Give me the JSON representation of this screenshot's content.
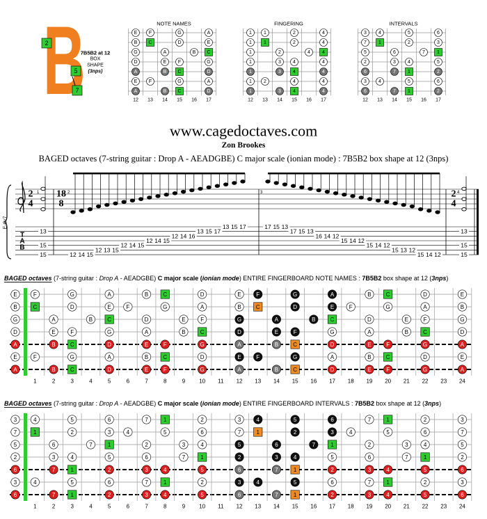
{
  "logo": {
    "letter": "B",
    "squares": [
      2,
      5,
      7
    ],
    "lines": [
      "7B5B2 at 12",
      "BOX",
      "SHAPE",
      "(3nps)"
    ]
  },
  "mini_boards": [
    {
      "title": "NOTE NAMES",
      "root": "C",
      "frets": [
        12,
        13,
        14,
        15,
        16,
        17
      ],
      "rows": [
        [
          "E",
          "F",
          null,
          "G",
          null,
          "A"
        ],
        [
          "B",
          "C",
          null,
          "D",
          null,
          "E"
        ],
        [
          "G",
          null,
          "A",
          null,
          "B",
          "C"
        ],
        [
          "D",
          null,
          "E",
          "F",
          null,
          "G"
        ],
        [
          "A",
          null,
          "B",
          "C",
          null,
          "D"
        ],
        [
          "E",
          "F",
          null,
          "G",
          null,
          "A"
        ],
        [
          "A",
          null,
          "B",
          "C",
          null,
          "D"
        ]
      ]
    },
    {
      "title": "FINGERING",
      "frets": [
        12,
        13,
        14,
        15,
        16,
        17
      ],
      "rows": [
        [
          1,
          1,
          null,
          2,
          null,
          4
        ],
        [
          1,
          1,
          null,
          2,
          null,
          4
        ],
        [
          1,
          null,
          2,
          null,
          4,
          4
        ],
        [
          1,
          null,
          3,
          4,
          null,
          4
        ],
        [
          1,
          null,
          3,
          4,
          null,
          4
        ],
        [
          1,
          2,
          null,
          4,
          null,
          4
        ],
        [
          1,
          null,
          3,
          4,
          null,
          4
        ]
      ]
    },
    {
      "title": "INTERVALS",
      "frets": [
        12,
        13,
        14,
        15,
        16,
        17
      ],
      "rows": [
        [
          3,
          4,
          null,
          5,
          null,
          6
        ],
        [
          7,
          1,
          null,
          2,
          null,
          3
        ],
        [
          5,
          null,
          6,
          null,
          7,
          1
        ],
        [
          2,
          null,
          3,
          4,
          null,
          5
        ],
        [
          6,
          null,
          7,
          1,
          null,
          2
        ],
        [
          3,
          4,
          null,
          5,
          null,
          6
        ],
        [
          6,
          null,
          7,
          1,
          null,
          2
        ]
      ]
    }
  ],
  "site": "www.cagedoctaves.com",
  "author": "Zon Brookes",
  "subtitle": "BAGED octaves (7-string guitar : Drop A - AEADGBE) C major scale (ionian mode) : 7B5B2 box shape at 12 (3nps)",
  "score": {
    "instrument": "E-Gr7",
    "time": [
      {
        "top": 2,
        "bottom": 4
      },
      {
        "top": 18,
        "bottom": 8
      },
      {
        "top": 2,
        "bottom": 4
      }
    ],
    "measure_numbers": [
      1,
      2,
      3,
      4
    ],
    "tab_clef": [
      "T",
      "A",
      "B"
    ],
    "measures": [
      [
        [
          [
            2,
            13
          ],
          [
            5,
            15
          ],
          [
            7,
            15
          ]
        ]
      ],
      [
        [
          [
            7,
            12
          ]
        ],
        [
          [
            7,
            14
          ]
        ],
        [
          [
            7,
            15
          ]
        ],
        [
          [
            6,
            12
          ]
        ],
        [
          [
            6,
            13
          ]
        ],
        [
          [
            6,
            15
          ]
        ],
        [
          [
            5,
            12
          ]
        ],
        [
          [
            5,
            14
          ]
        ],
        [
          [
            5,
            15
          ]
        ],
        [
          [
            4,
            12
          ]
        ],
        [
          [
            4,
            14
          ]
        ],
        [
          [
            4,
            15
          ]
        ],
        [
          [
            3,
            12
          ]
        ],
        [
          [
            3,
            14
          ]
        ],
        [
          [
            3,
            16
          ]
        ],
        [
          [
            2,
            13
          ]
        ],
        [
          [
            2,
            15
          ]
        ],
        [
          [
            2,
            17
          ]
        ],
        [
          [
            1,
            13
          ]
        ],
        [
          [
            1,
            15
          ]
        ],
        [
          [
            1,
            17
          ]
        ]
      ],
      [
        [
          [
            1,
            17
          ]
        ],
        [
          [
            1,
            15
          ]
        ],
        [
          [
            1,
            13
          ]
        ],
        [
          [
            2,
            17
          ]
        ],
        [
          [
            2,
            15
          ]
        ],
        [
          [
            2,
            13
          ]
        ],
        [
          [
            3,
            16
          ]
        ],
        [
          [
            3,
            14
          ]
        ],
        [
          [
            3,
            12
          ]
        ],
        [
          [
            4,
            15
          ]
        ],
        [
          [
            4,
            14
          ]
        ],
        [
          [
            4,
            12
          ]
        ],
        [
          [
            5,
            15
          ]
        ],
        [
          [
            5,
            14
          ]
        ],
        [
          [
            5,
            12
          ]
        ],
        [
          [
            6,
            15
          ]
        ],
        [
          [
            6,
            13
          ]
        ],
        [
          [
            6,
            12
          ]
        ],
        [
          [
            7,
            15
          ]
        ],
        [
          [
            7,
            14
          ]
        ],
        [
          [
            7,
            12
          ]
        ]
      ],
      [
        [
          [
            2,
            13
          ],
          [
            5,
            15
          ],
          [
            7,
            15
          ]
        ]
      ]
    ]
  },
  "boards": [
    {
      "header": [
        "BAGED octaves",
        " (7-string guitar : ",
        "Drop A",
        " - AEADGBE) ",
        "C major scale (",
        "ionian mode",
        ") ENTIRE FINGERBOARD NOTE NAMES : ",
        "7B5B2",
        " box shape at 12 (",
        "3nps",
        ")"
      ],
      "root": "C",
      "dot_color": "#ffffff",
      "colors": {
        "root": "#2ecc2e",
        "root_box": "#f28a1e",
        "box": "#111111",
        "box_accent": "#777777"
      },
      "frets": [
        1,
        2,
        3,
        4,
        5,
        6,
        7,
        8,
        9,
        10,
        11,
        12,
        13,
        14,
        15,
        16,
        17,
        18,
        19,
        20,
        21,
        22,
        23,
        24
      ],
      "rows": [
        {
          "color": "#ffffff",
          "box": [
            13,
            15,
            17
          ],
          "notes": [
            "E",
            "F",
            null,
            "G",
            null,
            "A",
            null,
            "B",
            "C",
            null,
            "D",
            null,
            "E",
            "F",
            null,
            "G",
            null,
            "A",
            null,
            "B",
            "C",
            null,
            "D",
            null,
            "E"
          ]
        },
        {
          "color": "#ffffff",
          "box": [
            13,
            15,
            17
          ],
          "notes": [
            "B",
            "C",
            null,
            "D",
            null,
            "E",
            "F",
            null,
            "G",
            null,
            "A",
            null,
            "B",
            "C",
            null,
            "D",
            null,
            "E",
            "F",
            null,
            "G",
            null,
            "A",
            null,
            "B"
          ]
        },
        {
          "color": "#ffffff",
          "box": [
            12,
            14,
            16
          ],
          "notes": [
            "G",
            null,
            "A",
            null,
            "B",
            "C",
            null,
            "D",
            null,
            "E",
            "F",
            null,
            "G",
            null,
            "A",
            null,
            "B",
            "C",
            null,
            "D",
            null,
            "E",
            "F",
            null,
            "G"
          ]
        },
        {
          "color": "#ffffff",
          "box": [
            12,
            14,
            15
          ],
          "notes": [
            "D",
            null,
            "E",
            "F",
            null,
            "G",
            null,
            "A",
            null,
            "B",
            "C",
            null,
            "D",
            null,
            "E",
            "F",
            null,
            "G",
            null,
            "A",
            null,
            "B",
            "C",
            null,
            "D"
          ]
        },
        {
          "color": "#e02020",
          "box": [
            12,
            14,
            15
          ],
          "notes": [
            "A",
            null,
            "B",
            "C",
            null,
            "D",
            null,
            "E",
            "F",
            null,
            "G",
            null,
            "A",
            null,
            "B",
            "C",
            null,
            "D",
            null,
            "E",
            "F",
            null,
            "G",
            null,
            "A"
          ]
        },
        {
          "color": "#ffffff",
          "box": [
            12,
            13,
            15
          ],
          "notes": [
            "E",
            "F",
            null,
            "G",
            null,
            "A",
            null,
            "B",
            "C",
            null,
            "D",
            null,
            "E",
            "F",
            null,
            "G",
            null,
            "A",
            null,
            "B",
            "C",
            null,
            "D",
            null,
            "E"
          ]
        },
        {
          "color": "#e02020",
          "box": [
            12,
            14,
            15
          ],
          "notes": [
            "A",
            null,
            "B",
            "C",
            null,
            "D",
            null,
            "E",
            "F",
            null,
            "G",
            null,
            "A",
            null,
            "B",
            "C",
            null,
            "D",
            null,
            "E",
            "F",
            null,
            "G",
            null,
            "A"
          ]
        }
      ]
    },
    {
      "header": [
        "BAGED octaves",
        " (7-string guitar : ",
        "Drop A",
        " - AEADGBE) ",
        "C major scale (",
        "ionian mode",
        ") ENTIRE FINGERBOARD INTERVALS : ",
        "7B5B2",
        " box shape at 12 (",
        "3nps",
        ")"
      ],
      "root": 1,
      "dot_color": "#ffffff",
      "colors": {
        "root": "#2ecc2e",
        "root_box": "#f28a1e",
        "box": "#111111",
        "box_accent": "#777777"
      },
      "frets": [
        1,
        2,
        3,
        4,
        5,
        6,
        7,
        8,
        9,
        10,
        11,
        12,
        13,
        14,
        15,
        16,
        17,
        18,
        19,
        20,
        21,
        22,
        23,
        24
      ],
      "rows": [
        {
          "color": "#ffffff",
          "box": [
            13,
            15,
            17
          ],
          "notes": [
            3,
            4,
            null,
            5,
            null,
            6,
            null,
            7,
            1,
            null,
            2,
            null,
            3,
            4,
            null,
            5,
            null,
            6,
            null,
            7,
            1,
            null,
            2,
            null,
            3
          ]
        },
        {
          "color": "#ffffff",
          "box": [
            13,
            15,
            17
          ],
          "notes": [
            7,
            1,
            null,
            2,
            null,
            3,
            4,
            null,
            5,
            null,
            6,
            null,
            7,
            1,
            null,
            2,
            null,
            3,
            4,
            null,
            5,
            null,
            6,
            null,
            7
          ]
        },
        {
          "color": "#ffffff",
          "box": [
            12,
            14,
            16
          ],
          "notes": [
            5,
            null,
            6,
            null,
            7,
            1,
            null,
            2,
            null,
            3,
            4,
            null,
            5,
            null,
            6,
            null,
            7,
            1,
            null,
            2,
            null,
            3,
            4,
            null,
            5
          ]
        },
        {
          "color": "#ffffff",
          "box": [
            12,
            14,
            15
          ],
          "notes": [
            2,
            null,
            3,
            4,
            null,
            5,
            null,
            6,
            null,
            7,
            1,
            null,
            2,
            null,
            3,
            4,
            null,
            5,
            null,
            6,
            null,
            7,
            1,
            null,
            2
          ]
        },
        {
          "color": "#e02020",
          "box": [
            12,
            14,
            15
          ],
          "notes": [
            6,
            null,
            7,
            1,
            null,
            2,
            null,
            3,
            4,
            null,
            5,
            null,
            6,
            null,
            7,
            1,
            null,
            2,
            null,
            3,
            4,
            null,
            5,
            null,
            6
          ]
        },
        {
          "color": "#ffffff",
          "box": [
            12,
            13,
            15
          ],
          "notes": [
            3,
            4,
            null,
            5,
            null,
            6,
            null,
            7,
            1,
            null,
            2,
            null,
            3,
            4,
            null,
            5,
            null,
            6,
            null,
            7,
            1,
            null,
            2,
            null,
            3
          ]
        },
        {
          "color": "#e02020",
          "box": [
            12,
            14,
            15
          ],
          "notes": [
            6,
            null,
            7,
            1,
            null,
            2,
            null,
            3,
            4,
            null,
            5,
            null,
            6,
            null,
            7,
            1,
            null,
            2,
            null,
            3,
            4,
            null,
            5,
            null,
            6
          ]
        }
      ]
    }
  ]
}
